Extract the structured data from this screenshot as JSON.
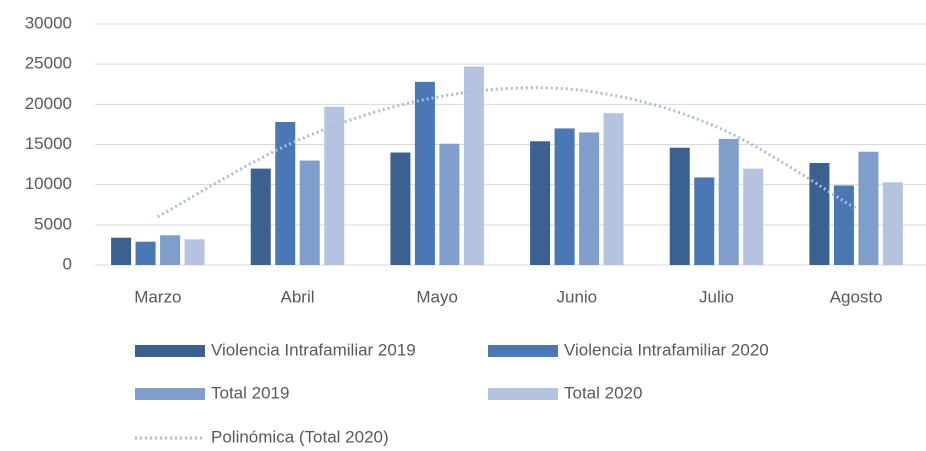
{
  "chart_data": {
    "type": "bar",
    "categories": [
      "Marzo",
      "Abril",
      "Mayo",
      "Junio",
      "Julio",
      "Agosto"
    ],
    "series": [
      {
        "name": "Violencia Intrafamiliar 2019",
        "color": "#3b6191",
        "values": [
          3400,
          12000,
          14000,
          15400,
          14600,
          12700
        ]
      },
      {
        "name": "Violencia Intrafamiliar 2020",
        "color": "#4a78b4",
        "values": [
          2900,
          17800,
          22800,
          17000,
          10900,
          9900
        ]
      },
      {
        "name": "Total 2019",
        "color": "#7f9ecb",
        "values": [
          3700,
          13000,
          15100,
          16500,
          15700,
          14100
        ]
      },
      {
        "name": "Total 2020",
        "color": "#b4c4e0",
        "values": [
          3200,
          19700,
          24700,
          18900,
          12000,
          10300
        ]
      },
      {
        "name": "Polinómica (Total 2020)",
        "color": "#a9bdd9",
        "kind": "line",
        "dotted": true,
        "values": [
          6000,
          15500,
          20900,
          21800,
          17200,
          7000
        ]
      }
    ],
    "ylim": [
      0,
      30000
    ],
    "yticks": [
      0,
      5000,
      10000,
      15000,
      20000,
      25000,
      30000
    ],
    "grid": true
  }
}
